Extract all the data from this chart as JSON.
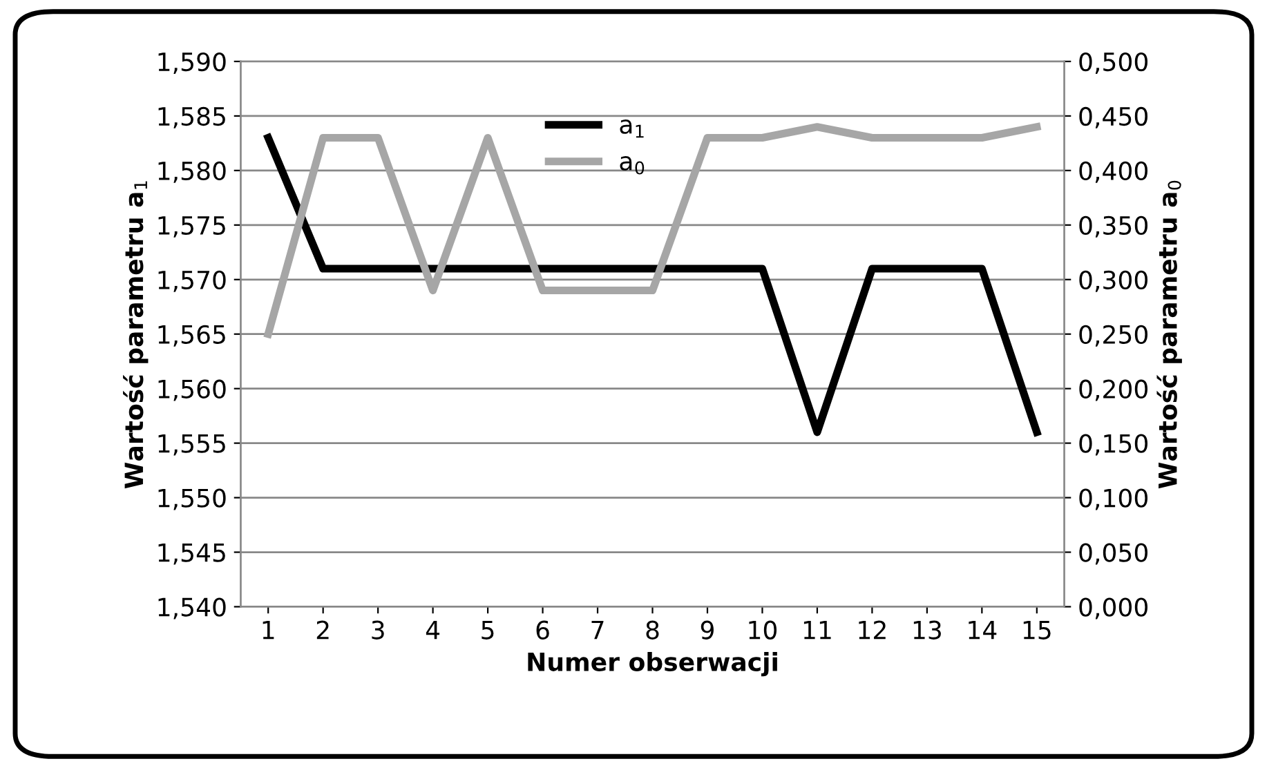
{
  "chart_data": {
    "type": "line",
    "xlabel": "Numer obserwacji",
    "ylabel": "Wartość parametru a$_{1}$",
    "y2label": "Wartość parametru a$_{0}$",
    "categories": [
      "1",
      "2",
      "3",
      "4",
      "5",
      "6",
      "7",
      "8",
      "9",
      "10",
      "11",
      "12",
      "13",
      "14",
      "15"
    ],
    "series": [
      {
        "name": "a$_{1}$",
        "color": "#000000",
        "values": [
          1.583,
          1.571,
          1.571,
          1.571,
          1.571,
          1.571,
          1.571,
          1.571,
          1.571,
          1.571,
          1.556,
          1.571,
          1.571,
          1.571,
          1.556
        ]
      },
      {
        "name": "a$_{0}$",
        "color": "#a6a6a6",
        "axis": "y2",
        "values": [
          0.25,
          0.43,
          0.43,
          0.29,
          0.43,
          0.29,
          0.29,
          0.29,
          0.43,
          0.43,
          0.44,
          0.43,
          0.43,
          0.43,
          0.44
        ]
      }
    ],
    "ylim": [
      1.54,
      1.59
    ],
    "yticks": [
      {
        "value": 1.54,
        "label": "1,540"
      },
      {
        "value": 1.545,
        "label": "1,545"
      },
      {
        "value": 1.55,
        "label": "1,550"
      },
      {
        "value": 1.555,
        "label": "1,555"
      },
      {
        "value": 1.56,
        "label": "1,560"
      },
      {
        "value": 1.565,
        "label": "1,565"
      },
      {
        "value": 1.57,
        "label": "1,570"
      },
      {
        "value": 1.575,
        "label": "1,575"
      },
      {
        "value": 1.58,
        "label": "1,580"
      },
      {
        "value": 1.585,
        "label": "1,585"
      },
      {
        "value": 1.59,
        "label": "1,590"
      }
    ],
    "y2lim": [
      0,
      0.5
    ],
    "y2ticks": [
      {
        "value": 0,
        "label": "0,000"
      },
      {
        "value": 0.05,
        "label": "0,050"
      },
      {
        "value": 0.1,
        "label": "0,100"
      },
      {
        "value": 0.15,
        "label": "0,150"
      },
      {
        "value": 0.2,
        "label": "0,200"
      },
      {
        "value": 0.25,
        "label": "0,250"
      },
      {
        "value": 0.3,
        "label": "0,300"
      },
      {
        "value": 0.35,
        "label": "0,350"
      },
      {
        "value": 0.4,
        "label": "0,400"
      },
      {
        "value": 0.45,
        "label": "0,450"
      },
      {
        "value": 0.5,
        "label": "0,500"
      }
    ],
    "grid": "y",
    "legend": "top",
    "marker": "none",
    "line_style": "solid"
  }
}
